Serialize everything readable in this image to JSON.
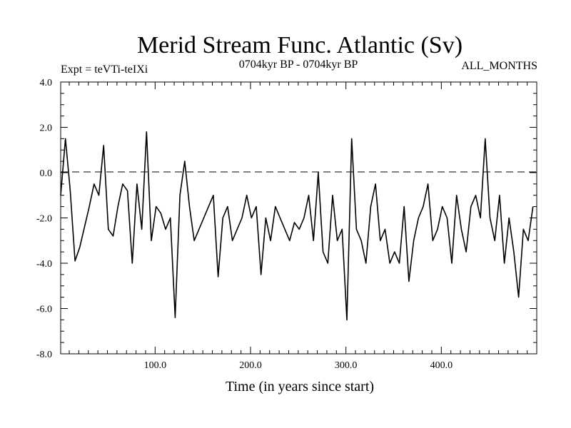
{
  "chart_data": {
    "type": "line",
    "title": "Merid Stream Func. Atlantic (Sv)",
    "subtitle_left": "Expt = teVTi-teIXi",
    "subtitle_center": "0704kyr BP - 0704kyr BP",
    "subtitle_right": "ALL_MONTHS",
    "xlabel": "Time (in years since start)",
    "ylabel": "",
    "xlim": [
      1,
      500
    ],
    "ylim": [
      -8,
      4
    ],
    "x_ticks": [
      100,
      200,
      300,
      400
    ],
    "x_tick_labels": [
      "100.0",
      "200.0",
      "300.0",
      "400.0"
    ],
    "y_ticks": [
      -8,
      -6,
      -4,
      -2,
      0,
      2,
      4
    ],
    "y_tick_labels": [
      "-8.0",
      "-6.0",
      "-4.0",
      "-2.0",
      "0.0",
      "2.0",
      "4.0"
    ],
    "reference_line": 0,
    "grid": false,
    "series": [
      {
        "x_start": 1,
        "x_step": 5,
        "values": [
          -1.0,
          1.5,
          -0.8,
          -3.9,
          -3.3,
          -2.4,
          -1.5,
          -0.5,
          -1.0,
          1.2,
          -2.5,
          -2.8,
          -1.5,
          -0.5,
          -0.8,
          -4.0,
          -0.5,
          -2.5,
          1.8,
          -3.0,
          -1.5,
          -1.8,
          -2.5,
          -2.0,
          -6.4,
          -1.0,
          0.5,
          -1.5,
          -3.0,
          -2.5,
          -2.0,
          -1.5,
          -1.0,
          -4.6,
          -2.0,
          -1.5,
          -3.0,
          -2.5,
          -2.0,
          -1.0,
          -2.0,
          -1.5,
          -4.5,
          -2.0,
          -3.0,
          -1.5,
          -2.0,
          -2.5,
          -3.0,
          -2.2,
          -2.5,
          -2.0,
          -1.0,
          -3.0,
          0.0,
          -3.5,
          -4.0,
          -1.0,
          -3.0,
          -2.5,
          -6.5,
          1.5,
          -2.5,
          -3.0,
          -4.0,
          -1.5,
          -0.5,
          -3.0,
          -2.5,
          -4.0,
          -3.5,
          -4.0,
          -1.5,
          -4.8,
          -3.0,
          -2.0,
          -1.5,
          -0.5,
          -3.0,
          -2.5,
          -1.5,
          -2.0,
          -4.0,
          -1.0,
          -2.5,
          -3.5,
          -1.5,
          -1.0,
          -2.0,
          1.5,
          -2.0,
          -3.0,
          -1.0,
          -4.0,
          -2.0,
          -3.5,
          -5.5,
          -2.5,
          -3.0,
          -1.5
        ]
      }
    ]
  }
}
